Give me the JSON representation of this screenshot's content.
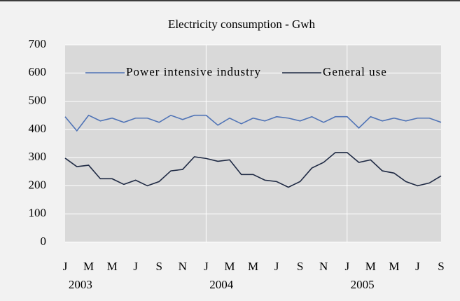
{
  "chart_data": {
    "type": "line",
    "title": "Electricity consumption - Gwh",
    "categories": [
      "J",
      null,
      "M",
      null,
      "M",
      null,
      "J",
      null,
      "S",
      null,
      "N",
      null,
      "J",
      null,
      "M",
      null,
      "M",
      null,
      "J",
      null,
      "S",
      null,
      "N",
      null,
      "J",
      null,
      "M",
      null,
      "M",
      null,
      "J",
      null,
      "S"
    ],
    "year_labels": [
      "2003",
      "2004",
      "2005"
    ],
    "series": [
      {
        "name": "Power intensive industry",
        "color": "#4f73b6",
        "values": [
          445,
          395,
          450,
          430,
          440,
          425,
          440,
          440,
          425,
          450,
          435,
          450,
          450,
          415,
          440,
          420,
          440,
          430,
          445,
          440,
          430,
          445,
          425,
          445,
          445,
          405,
          445,
          430,
          440,
          430,
          440,
          440,
          425
        ]
      },
      {
        "name": "General use",
        "color": "#1f2a44",
        "values": [
          298,
          268,
          273,
          225,
          225,
          205,
          220,
          200,
          215,
          253,
          258,
          303,
          297,
          287,
          292,
          240,
          240,
          220,
          215,
          195,
          215,
          263,
          283,
          318,
          318,
          283,
          292,
          253,
          245,
          215,
          200,
          210,
          235
        ]
      }
    ],
    "ylim": [
      0,
      700
    ],
    "yticks": [
      0,
      100,
      200,
      300,
      400,
      500,
      600,
      700
    ],
    "grid": true,
    "legend": "top"
  }
}
